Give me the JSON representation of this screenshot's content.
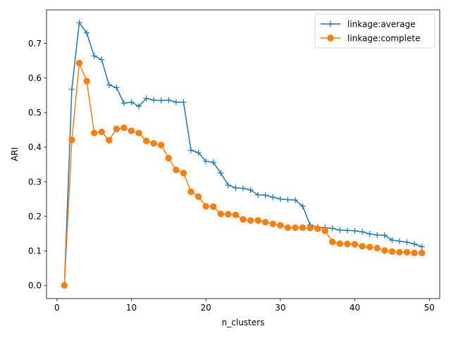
{
  "chart_data": {
    "type": "line",
    "xlabel": "n_clusters",
    "ylabel": "ARI",
    "xlim": [
      -1.4,
      51.4
    ],
    "ylim": [
      -0.038,
      0.797
    ],
    "xticks": [
      0,
      10,
      20,
      30,
      40,
      50
    ],
    "yticks": [
      0.0,
      0.1,
      0.2,
      0.3,
      0.4,
      0.5,
      0.6,
      0.7
    ],
    "ytick_labels": [
      "0.0",
      "0.1",
      "0.2",
      "0.3",
      "0.4",
      "0.5",
      "0.6",
      "0.7"
    ],
    "legend_position": "top-right",
    "grid": false,
    "x": [
      1,
      2,
      3,
      4,
      5,
      6,
      7,
      8,
      9,
      10,
      11,
      12,
      13,
      14,
      15,
      16,
      17,
      18,
      19,
      20,
      21,
      22,
      23,
      24,
      25,
      26,
      27,
      28,
      29,
      30,
      31,
      32,
      33,
      34,
      35,
      36,
      37,
      38,
      39,
      40,
      41,
      42,
      43,
      44,
      45,
      46,
      47,
      48,
      49
    ],
    "series": [
      {
        "name": "linkage:average",
        "color": "#1f77b4",
        "marker": "plus",
        "values": [
          0.0,
          0.567,
          0.76,
          0.73,
          0.664,
          0.653,
          0.58,
          0.572,
          0.527,
          0.53,
          0.518,
          0.541,
          0.536,
          0.535,
          0.536,
          0.53,
          0.53,
          0.391,
          0.384,
          0.359,
          0.356,
          0.325,
          0.29,
          0.282,
          0.281,
          0.276,
          0.262,
          0.261,
          0.255,
          0.25,
          0.248,
          0.247,
          0.229,
          0.175,
          0.168,
          0.167,
          0.165,
          0.16,
          0.159,
          0.158,
          0.155,
          0.149,
          0.146,
          0.145,
          0.131,
          0.128,
          0.125,
          0.12,
          0.112
        ]
      },
      {
        "name": "linkage:complete",
        "color": "#ff7f0e",
        "marker": "circle",
        "values": [
          0.0,
          0.421,
          0.643,
          0.591,
          0.441,
          0.444,
          0.42,
          0.453,
          0.456,
          0.447,
          0.441,
          0.418,
          0.411,
          0.406,
          0.368,
          0.334,
          0.325,
          0.271,
          0.257,
          0.229,
          0.228,
          0.207,
          0.206,
          0.204,
          0.191,
          0.188,
          0.188,
          0.183,
          0.178,
          0.174,
          0.167,
          0.167,
          0.167,
          0.166,
          0.164,
          0.158,
          0.126,
          0.121,
          0.12,
          0.119,
          0.113,
          0.111,
          0.108,
          0.101,
          0.098,
          0.096,
          0.096,
          0.094,
          0.094
        ]
      }
    ]
  }
}
